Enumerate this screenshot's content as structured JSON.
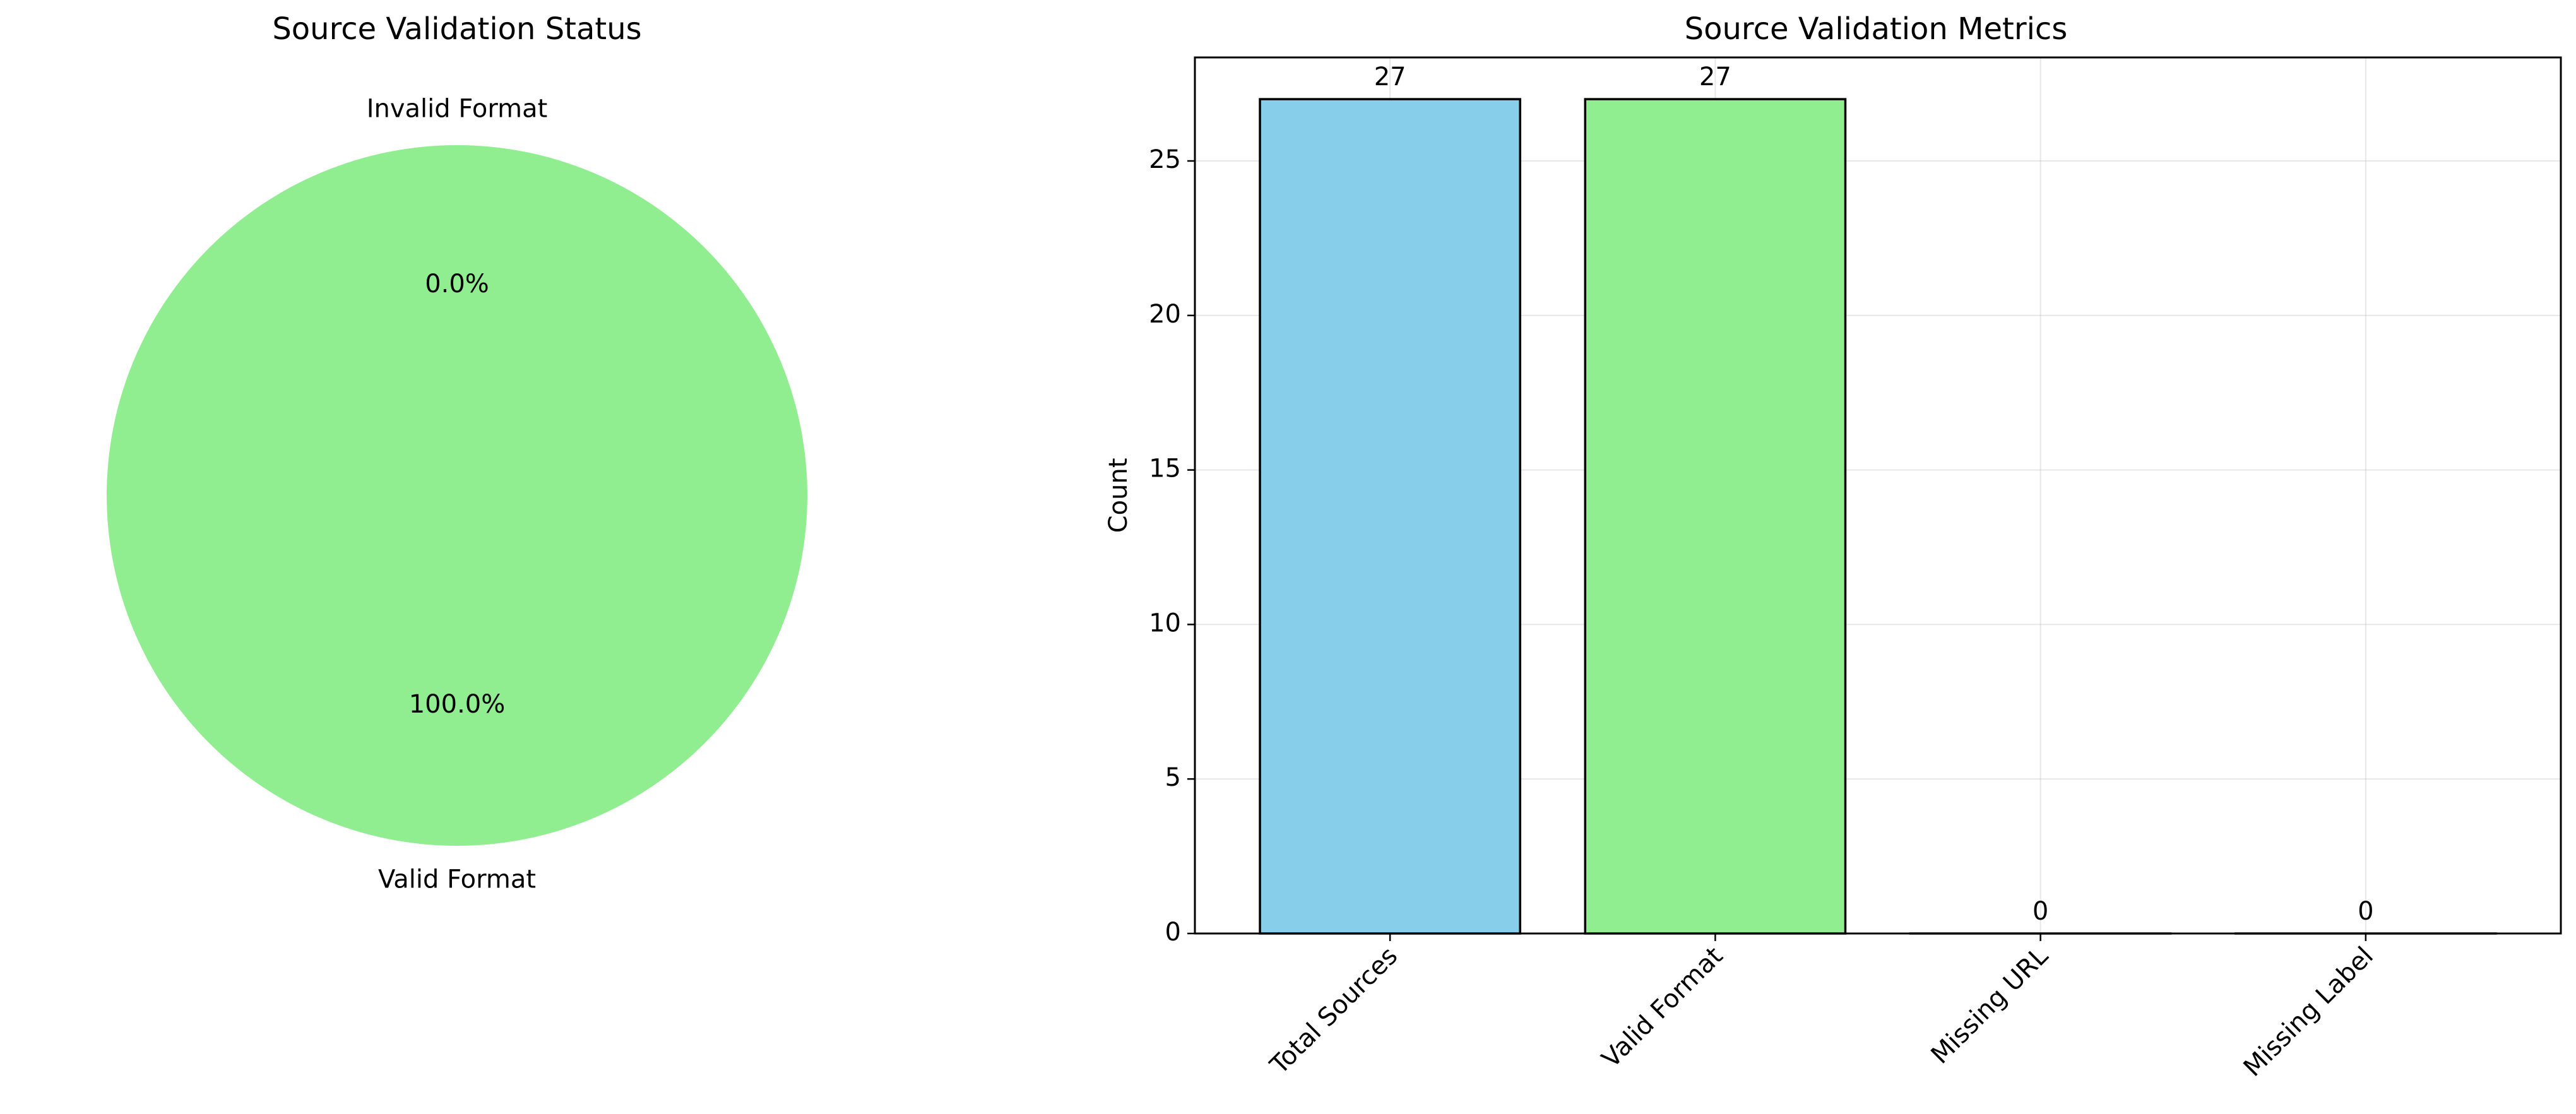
{
  "chart_data": [
    {
      "type": "pie",
      "title": "Source Validation Status",
      "labels": [
        "Valid Format",
        "Invalid Format"
      ],
      "values": [
        27,
        0
      ],
      "percent_labels": [
        "100.0%",
        "0.0%"
      ],
      "colors": [
        "#90ee90",
        "#ff9999"
      ]
    },
    {
      "type": "bar",
      "title": "Source Validation Metrics",
      "xlabel": "",
      "ylabel": "Count",
      "categories": [
        "Total Sources",
        "Valid Format",
        "Missing URL",
        "Missing Label"
      ],
      "values": [
        27,
        27,
        0,
        0
      ],
      "data_labels": [
        "27",
        "27",
        "0",
        "0"
      ],
      "colors": [
        "#87ceeb",
        "#90ee90",
        "#ffa500",
        "#ff6347"
      ],
      "ylim": [
        0,
        28.35
      ],
      "yticks": [
        0,
        5,
        10,
        15,
        20,
        25
      ],
      "grid": true
    }
  ]
}
